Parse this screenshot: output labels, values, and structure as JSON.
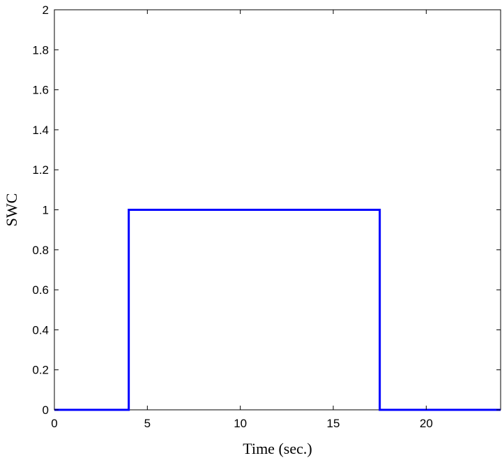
{
  "chart_data": {
    "type": "line",
    "title": "",
    "xlabel": "Time (sec.)",
    "ylabel": "SWC",
    "xlim": [
      0,
      24
    ],
    "ylim": [
      0,
      2
    ],
    "xticks": [
      0,
      5,
      10,
      15,
      20
    ],
    "yticks": [
      0,
      0.2,
      0.4,
      0.6,
      0.8,
      1,
      1.2,
      1.4,
      1.6,
      1.8,
      2
    ],
    "xtick_labels": [
      "0",
      "5",
      "10",
      "15",
      "20"
    ],
    "ytick_labels": [
      "0",
      "0.2",
      "0.4",
      "0.6",
      "0.8",
      "1",
      "1.2",
      "1.4",
      "1.6",
      "1.8",
      "2"
    ],
    "grid": false,
    "legend": "none",
    "series": [
      {
        "color": "#0000ff",
        "x": [
          0,
          4,
          4,
          17.5,
          17.5,
          24
        ],
        "y": [
          0,
          0,
          1,
          1,
          0,
          0
        ]
      }
    ]
  }
}
